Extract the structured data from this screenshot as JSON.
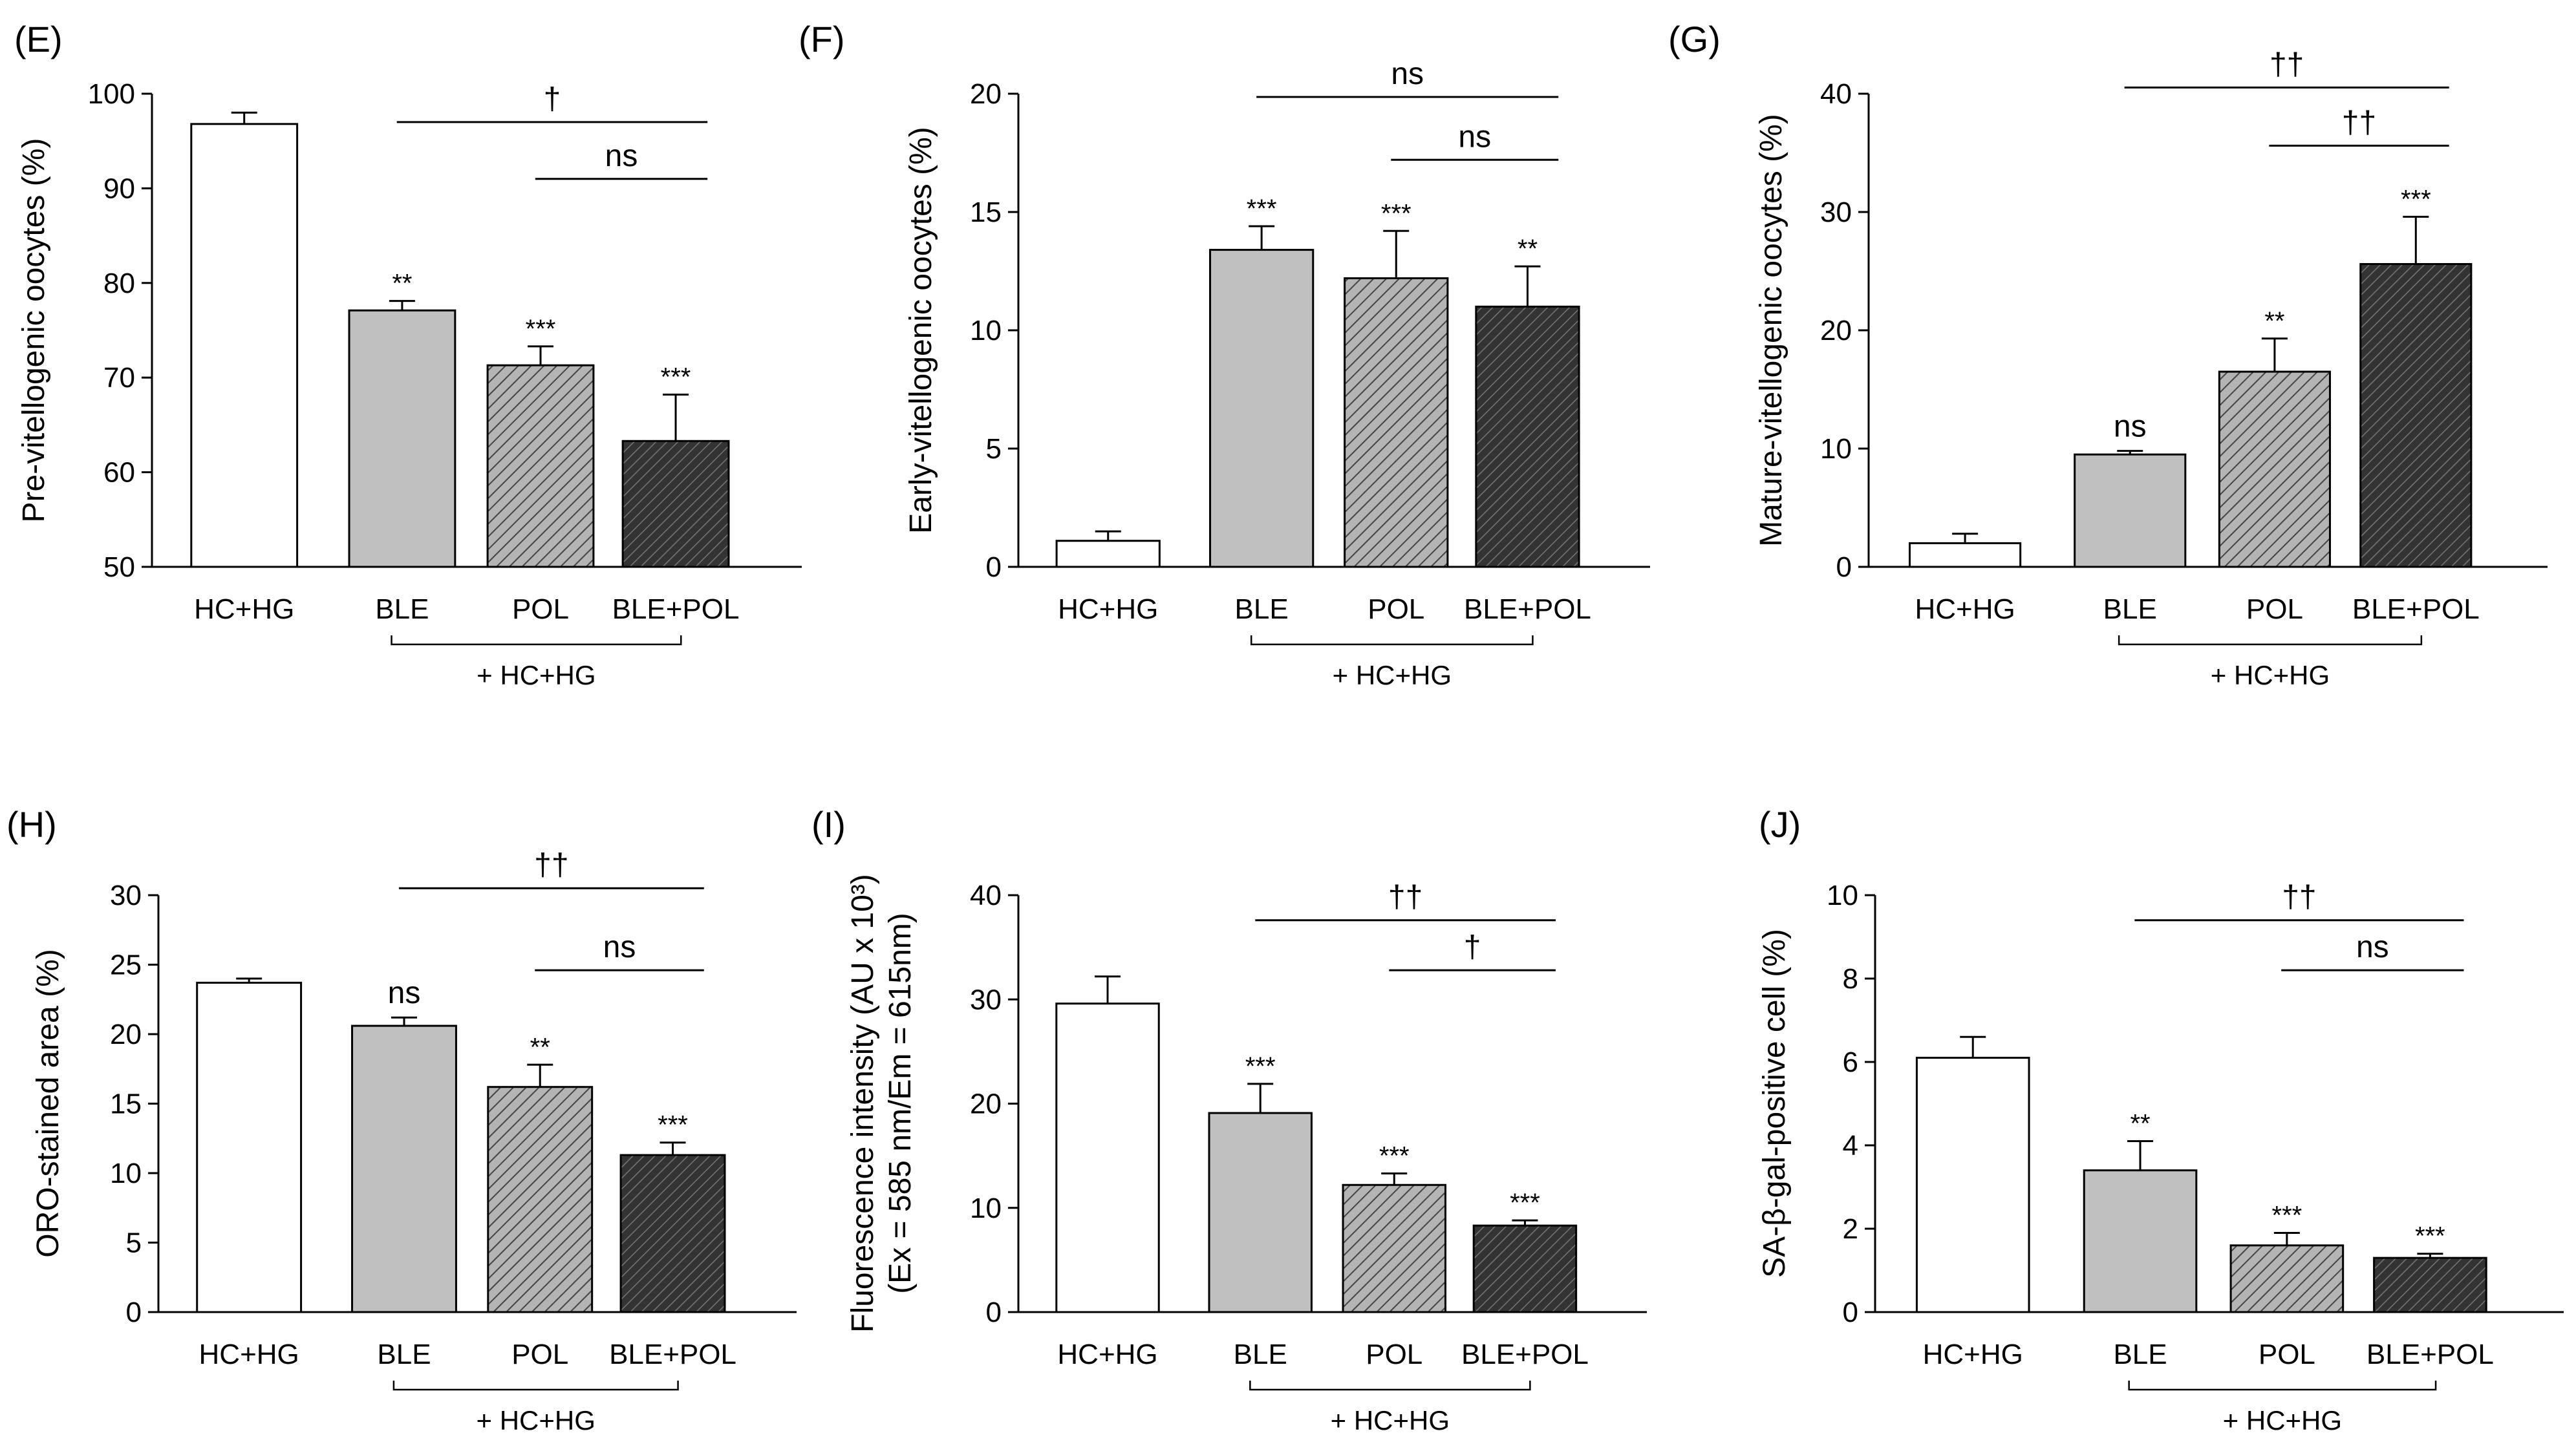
{
  "figure": {
    "categories": [
      "HC+HG",
      "BLE",
      "POL",
      "BLE+POL"
    ],
    "group_label": "+ HC+HG",
    "bar_styles": [
      {
        "fill": "#ffffff",
        "pattern": "none"
      },
      {
        "fill": "#c0c0c0",
        "pattern": "none"
      },
      {
        "fill": "#b4b4b4",
        "pattern": "sparse-diagonal"
      },
      {
        "fill": "#3a3a3a",
        "pattern": "dense-diagonal"
      }
    ]
  },
  "chart_data": [
    {
      "panel": "(E)",
      "type": "bar",
      "ylabel": "Pre-vitellogenic oocytes (%)",
      "ylabel2": "",
      "ylim": [
        50,
        100
      ],
      "yticks": [
        "50",
        "60",
        "70",
        "80",
        "90",
        "100"
      ],
      "values": [
        96.8,
        77.1,
        71.3,
        63.3
      ],
      "errors": [
        1.2,
        1.0,
        2.0,
        4.9
      ],
      "sig_labels": [
        "",
        "**",
        "***",
        "***"
      ],
      "comparisons": [
        {
          "from": 1,
          "to": 3,
          "label": "†"
        },
        {
          "from": 2,
          "to": 3,
          "label": "ns"
        }
      ]
    },
    {
      "panel": "(F)",
      "type": "bar",
      "ylabel": "Early-vitellogenic oocytes (%)",
      "ylabel2": "",
      "ylim": [
        0,
        20
      ],
      "yticks": [
        "0",
        "5",
        "10",
        "15",
        "20"
      ],
      "values": [
        1.1,
        13.4,
        12.2,
        11.0
      ],
      "errors": [
        0.4,
        1.0,
        2.0,
        1.7
      ],
      "sig_labels": [
        "",
        "***",
        "***",
        "**"
      ],
      "comparisons": [
        {
          "from": 1,
          "to": 3,
          "label": "ns"
        },
        {
          "from": 2,
          "to": 3,
          "label": "ns"
        }
      ]
    },
    {
      "panel": "(G)",
      "type": "bar",
      "ylabel": "Mature-vitellogenic oocytes (%)",
      "ylabel2": "",
      "ylim": [
        0,
        40
      ],
      "yticks": [
        "0",
        "10",
        "20",
        "30",
        "40"
      ],
      "values": [
        2.0,
        9.5,
        16.5,
        25.6
      ],
      "errors": [
        0.8,
        0.3,
        2.8,
        4.0
      ],
      "sig_labels": [
        "",
        "ns",
        "**",
        "***"
      ],
      "comparisons": [
        {
          "from": 1,
          "to": 3,
          "label": "††"
        },
        {
          "from": 2,
          "to": 3,
          "label": "††"
        }
      ]
    },
    {
      "panel": "(H)",
      "type": "bar",
      "ylabel": "ORO-stained area (%)",
      "ylabel2": "",
      "ylim": [
        0,
        30
      ],
      "yticks": [
        "0",
        "5",
        "10",
        "15",
        "20",
        "25",
        "30"
      ],
      "values": [
        23.7,
        20.6,
        16.2,
        11.3
      ],
      "errors": [
        0.3,
        0.6,
        1.6,
        0.9
      ],
      "sig_labels": [
        "",
        "ns",
        "**",
        "***"
      ],
      "comparisons": [
        {
          "from": 1,
          "to": 3,
          "label": "††"
        },
        {
          "from": 2,
          "to": 3,
          "label": "ns"
        }
      ]
    },
    {
      "panel": "(I)",
      "type": "bar",
      "ylabel": "Fluorescence intensity (AU x 10³)",
      "ylabel2": "(Ex = 585 nm/Em = 615nm)",
      "ylim": [
        0,
        40
      ],
      "yticks": [
        "0",
        "10",
        "20",
        "30",
        "40"
      ],
      "values": [
        29.6,
        19.1,
        12.2,
        8.3
      ],
      "errors": [
        2.6,
        2.8,
        1.1,
        0.5
      ],
      "sig_labels": [
        "",
        "***",
        "***",
        "***"
      ],
      "comparisons": [
        {
          "from": 1,
          "to": 3,
          "label": "††"
        },
        {
          "from": 2,
          "to": 3,
          "label": "†"
        }
      ]
    },
    {
      "panel": "(J)",
      "type": "bar",
      "ylabel": "SA-β-gal-positive cell (%)",
      "ylabel2": "",
      "ylim": [
        0,
        10
      ],
      "yticks": [
        "0",
        "2",
        "4",
        "6",
        "8",
        "10"
      ],
      "values": [
        6.1,
        3.4,
        1.6,
        1.3
      ],
      "errors": [
        0.5,
        0.7,
        0.3,
        0.1
      ],
      "sig_labels": [
        "",
        "**",
        "***",
        "***"
      ],
      "comparisons": [
        {
          "from": 1,
          "to": 3,
          "label": "††"
        },
        {
          "from": 2,
          "to": 3,
          "label": "ns"
        }
      ]
    }
  ]
}
